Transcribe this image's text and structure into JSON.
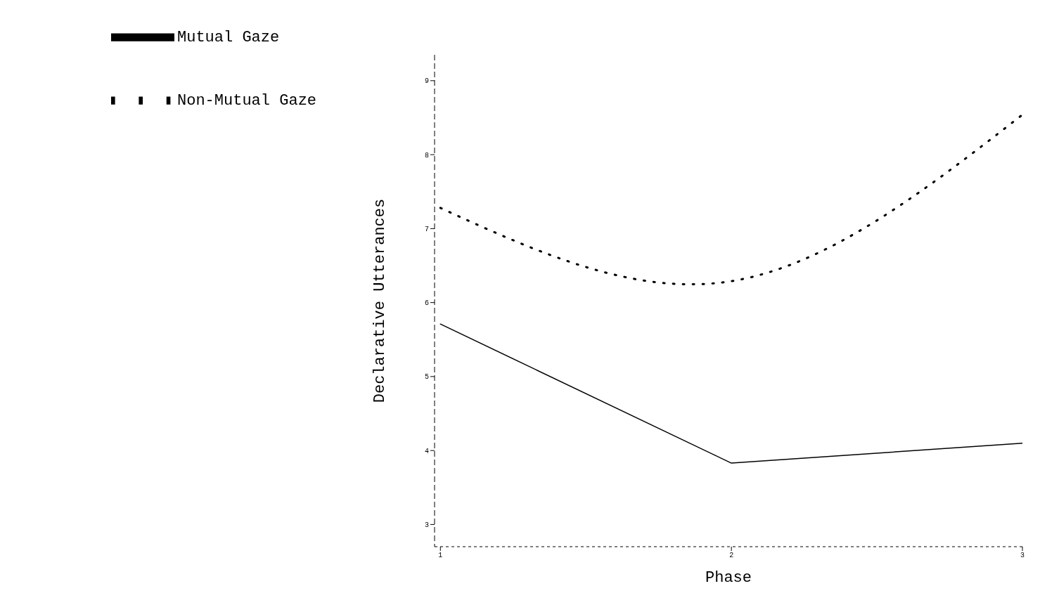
{
  "chart_data": {
    "type": "line",
    "xlabel": "Phase",
    "ylabel": "Declarative Utterances",
    "x": [
      1,
      2,
      3
    ],
    "series": [
      {
        "name": "Mutual Gaze",
        "color": "#000000",
        "line_style": "solid",
        "values": [
          5.71,
          3.83,
          4.1
        ]
      },
      {
        "name": "Non-Mutual Gaze",
        "color": "#000000",
        "line_style": "dotted",
        "values": [
          7.28,
          6.29,
          8.54
        ]
      }
    ],
    "xlim": [
      0.98,
      3
    ],
    "xticks": [
      1,
      2,
      3
    ],
    "ylim": [
      2.7,
      9.35
    ],
    "yticks": [
      3,
      4,
      5,
      6,
      7,
      8,
      9
    ],
    "grid": false,
    "legend": "top left"
  }
}
